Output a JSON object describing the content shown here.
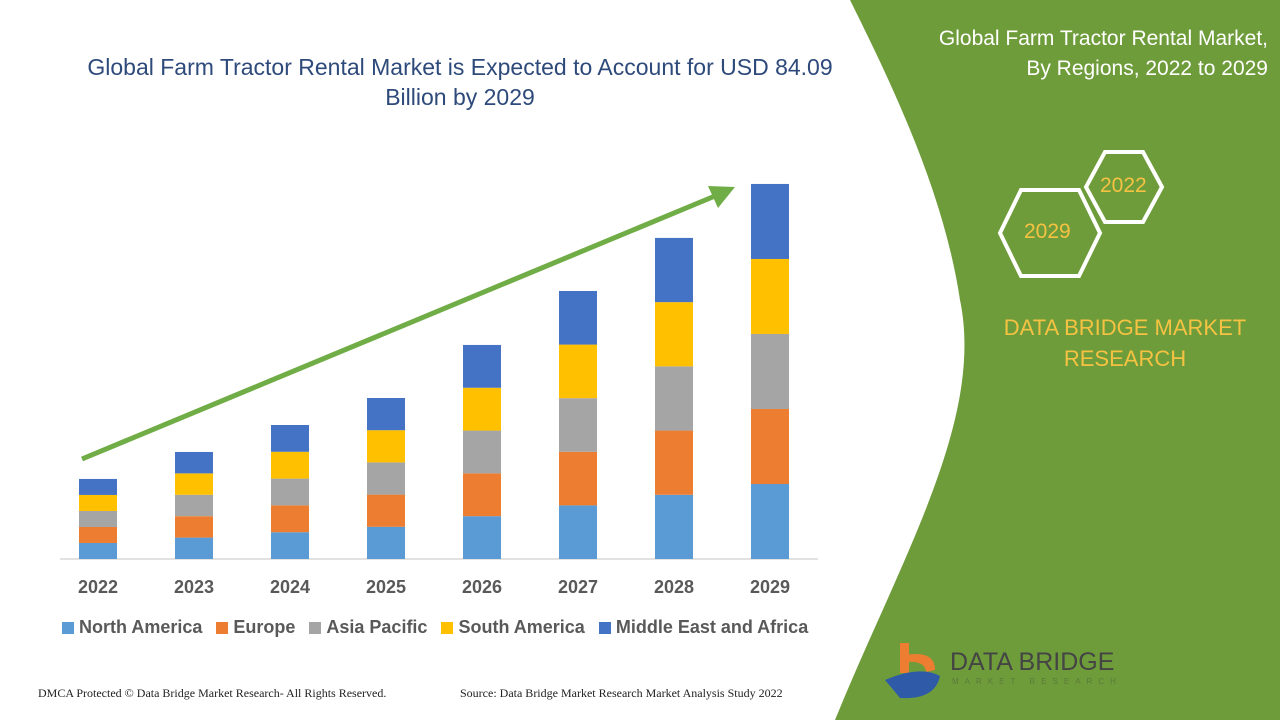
{
  "title": "Global Farm Tractor Rental Market is Expected to Account for USD 84.09 Billion by 2029",
  "side_panel": {
    "title_line1": "Global Farm Tractor Rental Market,",
    "title_line2": "By Regions, 2022 to 2029",
    "hex1": "2022",
    "hex2": "2029",
    "brand_line1": "DATA BRIDGE MARKET",
    "brand_line2": "RESEARCH",
    "logo_text": "DATA BRIDGE",
    "logo_sub": "MARKET RESEARCH",
    "color": "#6f9c3b"
  },
  "footer": {
    "left": "DMCA Protected © Data Bridge Market Research- All Rights Reserved.",
    "right": "Source: Data Bridge Market Research Market Analysis Study 2022"
  },
  "chart_data": {
    "type": "bar",
    "stacked": true,
    "categories": [
      "2022",
      "2023",
      "2024",
      "2025",
      "2026",
      "2027",
      "2028",
      "2029"
    ],
    "series": [
      {
        "name": "North America",
        "color": "#5b9bd5",
        "values": [
          3.59,
          4.8,
          6.01,
          7.22,
          9.6,
          12.02,
          14.4,
          16.82
        ]
      },
      {
        "name": "Europe",
        "color": "#ed7d31",
        "values": [
          3.59,
          4.8,
          6.01,
          7.22,
          9.6,
          12.02,
          14.4,
          16.82
        ]
      },
      {
        "name": "Asia Pacific",
        "color": "#a5a5a5",
        "values": [
          3.59,
          4.8,
          6.01,
          7.22,
          9.6,
          12.02,
          14.4,
          16.82
        ]
      },
      {
        "name": "South America",
        "color": "#ffc000",
        "values": [
          3.59,
          4.8,
          6.01,
          7.22,
          9.6,
          12.02,
          14.4,
          16.82
        ]
      },
      {
        "name": "Middle East and Africa",
        "color": "#4472c4",
        "values": [
          3.59,
          4.8,
          6.01,
          7.22,
          9.6,
          12.02,
          14.4,
          16.82
        ]
      }
    ],
    "ylim": [
      0,
      84.09
    ],
    "grid": false,
    "legend": "bottom",
    "trend_arrow_color": "#70ad47"
  }
}
